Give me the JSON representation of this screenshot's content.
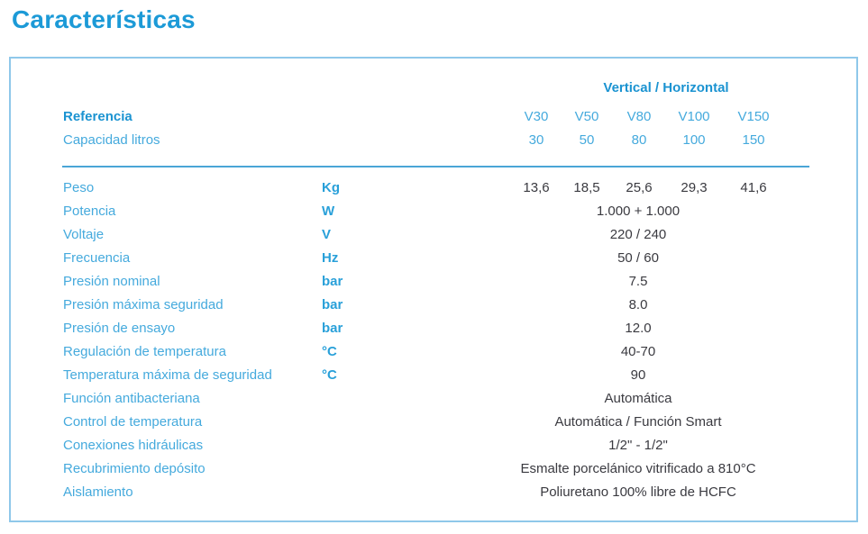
{
  "page_title": "Características",
  "table": {
    "group_header": "Vertical / Horizontal",
    "reference_row": {
      "label": "Referencia",
      "values": [
        "V30",
        "V50",
        "V80",
        "V100",
        "V150"
      ]
    },
    "capacity_row": {
      "label": "Capacidad litros",
      "values": [
        "30",
        "50",
        "80",
        "100",
        "150"
      ]
    },
    "rows": [
      {
        "label": "Peso",
        "unit": "Kg",
        "values": [
          "13,6",
          "18,5",
          "25,6",
          "29,3",
          "41,6"
        ]
      },
      {
        "label": "Potencia",
        "unit": "W",
        "value": "1.000 + 1.000"
      },
      {
        "label": "Voltaje",
        "unit": "V",
        "value": "220 / 240"
      },
      {
        "label": "Frecuencia",
        "unit": "Hz",
        "value": "50 / 60"
      },
      {
        "label": "Presión nominal",
        "unit": "bar",
        "value": "7.5"
      },
      {
        "label": "Presión máxima seguridad",
        "unit": "bar",
        "value": "8.0"
      },
      {
        "label": "Presión de ensayo",
        "unit": "bar",
        "value": "12.0"
      },
      {
        "label": "Regulación de temperatura",
        "unit": "°C",
        "value": "40-70"
      },
      {
        "label": "Temperatura máxima de seguridad",
        "unit": "°C",
        "value": "90"
      },
      {
        "label": "Función antibacteriana",
        "unit": "",
        "value": "Automática"
      },
      {
        "label": "Control de temperatura",
        "unit": "",
        "value": "Automática / Función Smart"
      },
      {
        "label": "Conexiones hidráulicas",
        "unit": "",
        "value": "1/2\" - 1/2\""
      },
      {
        "label": "Recubrimiento depósito",
        "unit": "",
        "value": "Esmalte porcelánico vitrificado a 810°C"
      },
      {
        "label": "Aislamiento",
        "unit": "",
        "value": "Poliuretano 100% libre de HCFC"
      }
    ]
  },
  "colors": {
    "accent_blue": "#1c9ad7",
    "label_blue": "#45aadd",
    "bold_blue": "#1b93d1",
    "value_text": "#3a3a40",
    "box_border": "#8fc8ea",
    "divider": "#4aa5d6"
  }
}
